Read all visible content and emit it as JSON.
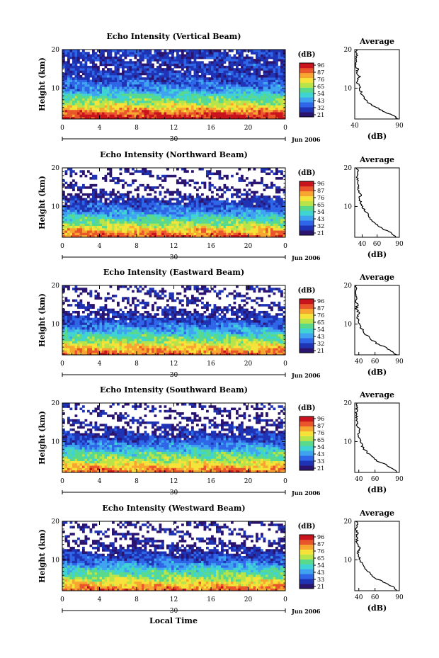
{
  "figure": {
    "date_label": "Jun 2006",
    "day_label": "30",
    "xlabel": "Local Time",
    "ylabel": "Height (km)",
    "cbar_unit": "(dB)",
    "avg_title": "Average",
    "avg_xlabel": "(dB)"
  },
  "chart_data": [
    {
      "type": "heatmap",
      "title": "Echo Intensity (Vertical Beam)",
      "xlim": [
        0,
        24
      ],
      "ylim": [
        2,
        20
      ],
      "xticks": [
        "0",
        "4",
        "8",
        "12",
        "16",
        "20",
        "0"
      ],
      "yticks": [
        "10",
        "20"
      ],
      "colorbar": {
        "ticks": [
          "96",
          "87",
          "76",
          "65",
          "54",
          "43",
          "32",
          "21"
        ],
        "range": [
          21,
          96
        ]
      },
      "z_profile": [
        [
          2,
          95
        ],
        [
          3,
          90
        ],
        [
          4,
          82
        ],
        [
          5,
          74
        ],
        [
          6,
          66
        ],
        [
          7,
          60
        ],
        [
          8,
          54
        ],
        [
          9,
          47
        ],
        [
          10,
          42
        ],
        [
          11,
          38
        ],
        [
          12,
          35
        ],
        [
          13,
          33
        ],
        [
          14,
          32
        ],
        [
          15,
          30
        ],
        [
          16,
          31
        ],
        [
          17,
          30
        ],
        [
          18,
          31
        ],
        [
          19,
          30
        ],
        [
          20,
          29
        ]
      ],
      "average": {
        "xlim": [
          40,
          90
        ],
        "xticks": [
          "40",
          "90"
        ],
        "yticks": [
          "10",
          "20"
        ],
        "profile": [
          [
            2,
            88
          ],
          [
            3,
            82
          ],
          [
            4,
            72
          ],
          [
            5,
            64
          ],
          [
            6,
            57
          ],
          [
            7,
            52
          ],
          [
            8,
            49
          ],
          [
            9,
            47
          ],
          [
            10,
            46
          ],
          [
            11,
            44
          ],
          [
            12,
            43
          ],
          [
            13,
            45
          ],
          [
            14,
            42
          ],
          [
            15,
            43
          ],
          [
            16,
            41
          ],
          [
            17,
            42
          ],
          [
            18,
            41
          ],
          [
            19,
            43
          ],
          [
            20,
            42
          ]
        ]
      }
    },
    {
      "type": "heatmap",
      "title": "Echo Intensity (Northward Beam)",
      "xlim": [
        0,
        24
      ],
      "ylim": [
        2,
        20
      ],
      "xticks": [
        "0",
        "4",
        "8",
        "12",
        "16",
        "20",
        "0"
      ],
      "yticks": [
        "10",
        "20"
      ],
      "colorbar": {
        "ticks": [
          "96",
          "87",
          "76",
          "65",
          "54",
          "43",
          "32",
          "21"
        ],
        "range": [
          21,
          96
        ]
      },
      "z_profile": [
        [
          2,
          88
        ],
        [
          3,
          82
        ],
        [
          4,
          75
        ],
        [
          5,
          67
        ],
        [
          6,
          60
        ],
        [
          7,
          54
        ],
        [
          8,
          46
        ],
        [
          9,
          40
        ],
        [
          10,
          36
        ],
        [
          11,
          31
        ],
        [
          12,
          27
        ],
        [
          13,
          24
        ],
        [
          14,
          22
        ],
        [
          15,
          21
        ],
        [
          16,
          21
        ],
        [
          17,
          21
        ],
        [
          18,
          21
        ],
        [
          19,
          22
        ],
        [
          20,
          21
        ]
      ],
      "average": {
        "xlim": [
          30,
          90
        ],
        "xticks": [
          "40",
          "60",
          "90"
        ],
        "yticks": [
          "10",
          "20"
        ],
        "profile": [
          [
            2,
            86
          ],
          [
            3,
            80
          ],
          [
            4,
            70
          ],
          [
            5,
            62
          ],
          [
            6,
            54
          ],
          [
            7,
            50
          ],
          [
            8,
            47
          ],
          [
            9,
            44
          ],
          [
            10,
            40
          ],
          [
            11,
            38
          ],
          [
            12,
            36
          ],
          [
            13,
            38
          ],
          [
            14,
            35
          ],
          [
            15,
            35
          ],
          [
            16,
            34
          ],
          [
            17,
            34
          ],
          [
            18,
            33
          ],
          [
            19,
            34
          ],
          [
            20,
            33
          ]
        ]
      }
    },
    {
      "type": "heatmap",
      "title": "Echo Intensity (Eastward Beam)",
      "xlim": [
        0,
        24
      ],
      "ylim": [
        2,
        20
      ],
      "xticks": [
        "0",
        "4",
        "8",
        "12",
        "16",
        "20",
        "0"
      ],
      "yticks": [
        "10",
        "20"
      ],
      "colorbar": {
        "ticks": [
          "96",
          "87",
          "76",
          "65",
          "54",
          "43",
          "32",
          "21"
        ],
        "range": [
          21,
          96
        ]
      },
      "z_profile": [
        [
          2,
          86
        ],
        [
          3,
          80
        ],
        [
          4,
          74
        ],
        [
          5,
          68
        ],
        [
          6,
          60
        ],
        [
          7,
          55
        ],
        [
          8,
          47
        ],
        [
          9,
          42
        ],
        [
          10,
          37
        ],
        [
          11,
          33
        ],
        [
          12,
          29
        ],
        [
          13,
          26
        ],
        [
          14,
          24
        ],
        [
          15,
          22
        ],
        [
          16,
          21
        ],
        [
          17,
          22
        ],
        [
          18,
          21
        ],
        [
          19,
          22
        ],
        [
          20,
          21
        ]
      ],
      "average": {
        "xlim": [
          35,
          90
        ],
        "xticks": [
          "40",
          "60",
          "90"
        ],
        "yticks": [
          "10",
          "20"
        ],
        "profile": [
          [
            2,
            86
          ],
          [
            3,
            80
          ],
          [
            4,
            72
          ],
          [
            5,
            62
          ],
          [
            6,
            55
          ],
          [
            7,
            50
          ],
          [
            8,
            46
          ],
          [
            9,
            43
          ],
          [
            10,
            41
          ],
          [
            11,
            40
          ],
          [
            12,
            38
          ],
          [
            13,
            40
          ],
          [
            14,
            37
          ],
          [
            15,
            38
          ],
          [
            16,
            37
          ],
          [
            17,
            37
          ],
          [
            18,
            36
          ],
          [
            19,
            37
          ],
          [
            20,
            36
          ]
        ]
      }
    },
    {
      "type": "heatmap",
      "title": "Echo Intensity (Southward Beam)",
      "xlim": [
        0,
        24
      ],
      "ylim": [
        2,
        20
      ],
      "xticks": [
        "0",
        "4",
        "8",
        "12",
        "16",
        "20",
        "0"
      ],
      "yticks": [
        "10",
        "20"
      ],
      "colorbar": {
        "ticks": [
          "96",
          "87",
          "76",
          "65",
          "54",
          "43",
          "33",
          "21"
        ],
        "range": [
          21,
          96
        ]
      },
      "z_profile": [
        [
          2,
          86
        ],
        [
          3,
          80
        ],
        [
          4,
          73
        ],
        [
          5,
          66
        ],
        [
          6,
          60
        ],
        [
          7,
          55
        ],
        [
          8,
          47
        ],
        [
          9,
          42
        ],
        [
          10,
          37
        ],
        [
          11,
          33
        ],
        [
          12,
          29
        ],
        [
          13,
          26
        ],
        [
          14,
          24
        ],
        [
          15,
          22
        ],
        [
          16,
          21
        ],
        [
          17,
          22
        ],
        [
          18,
          21
        ],
        [
          19,
          22
        ],
        [
          20,
          21
        ]
      ],
      "average": {
        "xlim": [
          35,
          90
        ],
        "xticks": [
          "40",
          "60",
          "90"
        ],
        "yticks": [
          "10",
          "20"
        ],
        "profile": [
          [
            2,
            88
          ],
          [
            3,
            82
          ],
          [
            4,
            73
          ],
          [
            5,
            63
          ],
          [
            6,
            56
          ],
          [
            7,
            51
          ],
          [
            8,
            47
          ],
          [
            9,
            44
          ],
          [
            10,
            42
          ],
          [
            11,
            40
          ],
          [
            12,
            39
          ],
          [
            13,
            41
          ],
          [
            14,
            38
          ],
          [
            15,
            38
          ],
          [
            16,
            37
          ],
          [
            17,
            38
          ],
          [
            18,
            37
          ],
          [
            19,
            38
          ],
          [
            20,
            37
          ]
        ]
      }
    },
    {
      "type": "heatmap",
      "title": "Echo Intensity (Westward Beam)",
      "xlim": [
        0,
        24
      ],
      "ylim": [
        2,
        20
      ],
      "xticks": [
        "0",
        "4",
        "8",
        "12",
        "16",
        "20",
        "0"
      ],
      "yticks": [
        "10",
        "20"
      ],
      "colorbar": {
        "ticks": [
          "96",
          "87",
          "76",
          "65",
          "54",
          "43",
          "33",
          "21"
        ],
        "range": [
          21,
          96
        ]
      },
      "z_profile": [
        [
          2,
          86
        ],
        [
          3,
          80
        ],
        [
          4,
          73
        ],
        [
          5,
          66
        ],
        [
          6,
          60
        ],
        [
          7,
          55
        ],
        [
          8,
          47
        ],
        [
          9,
          42
        ],
        [
          10,
          37
        ],
        [
          11,
          33
        ],
        [
          12,
          29
        ],
        [
          13,
          26
        ],
        [
          14,
          24
        ],
        [
          15,
          22
        ],
        [
          16,
          21
        ],
        [
          17,
          22
        ],
        [
          18,
          21
        ],
        [
          19,
          22
        ],
        [
          20,
          21
        ]
      ],
      "average": {
        "xlim": [
          35,
          90
        ],
        "xticks": [
          "40",
          "60",
          "90"
        ],
        "yticks": [
          "10",
          "20"
        ],
        "profile": [
          [
            2,
            88
          ],
          [
            3,
            82
          ],
          [
            4,
            73
          ],
          [
            5,
            63
          ],
          [
            6,
            56
          ],
          [
            7,
            51
          ],
          [
            8,
            47
          ],
          [
            9,
            44
          ],
          [
            10,
            42
          ],
          [
            11,
            40
          ],
          [
            12,
            39
          ],
          [
            13,
            41
          ],
          [
            14,
            38
          ],
          [
            15,
            38
          ],
          [
            16,
            37
          ],
          [
            17,
            38
          ],
          [
            18,
            37
          ],
          [
            19,
            38
          ],
          [
            20,
            37
          ]
        ]
      }
    }
  ],
  "colors": {
    "ramp": [
      "#2a1470",
      "#1f33b5",
      "#2f66e8",
      "#3fa3f0",
      "#3fd3d3",
      "#58d98c",
      "#b8e44a",
      "#f6e33a",
      "#f7a631",
      "#e9562b",
      "#c9141d"
    ]
  }
}
